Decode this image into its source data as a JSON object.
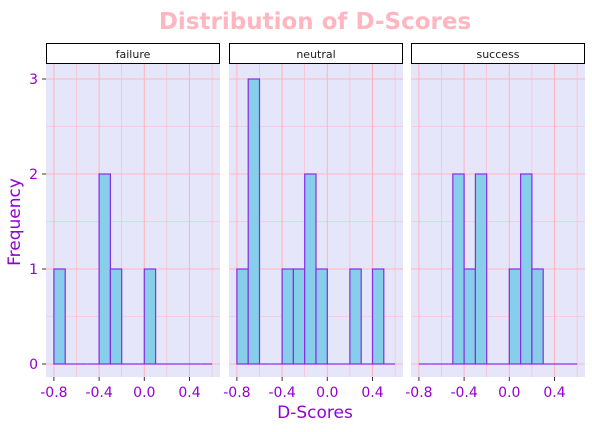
{
  "chart_data": {
    "type": "bar",
    "title": "Distribution of D-Scores",
    "xlabel": "D-Scores",
    "ylabel": "Frequency",
    "xlim": [
      -0.8,
      0.6
    ],
    "ylim": [
      0,
      3
    ],
    "x_ticks": [
      "-0.8",
      "-0.4",
      "0.0",
      "0.4"
    ],
    "y_ticks": [
      "0",
      "1",
      "2",
      "3"
    ],
    "bin_width": 0.1,
    "grid": true,
    "colors": {
      "title": "#ffb6c1",
      "axis_text": "#9400d3",
      "panel_bg": "#e6e6fa",
      "grid": "#ffb6c1",
      "bar_fill": "#87ceeb",
      "bar_stroke": "#8a2be2",
      "strip_bg": "#ffffff",
      "strip_border": "#000000"
    },
    "panels": [
      {
        "name": "failure",
        "bin_centers": [
          -0.75,
          -0.65,
          -0.55,
          -0.45,
          -0.35,
          -0.25,
          -0.15,
          -0.05,
          0.05,
          0.15,
          0.25,
          0.35,
          0.45,
          0.55
        ],
        "counts": [
          1,
          0,
          0,
          0,
          2,
          1,
          0,
          0,
          1,
          0,
          0,
          0,
          0,
          0
        ]
      },
      {
        "name": "neutral",
        "bin_centers": [
          -0.75,
          -0.65,
          -0.55,
          -0.45,
          -0.35,
          -0.25,
          -0.15,
          -0.05,
          0.05,
          0.15,
          0.25,
          0.35,
          0.45,
          0.55
        ],
        "counts": [
          1,
          3,
          0,
          0,
          1,
          1,
          2,
          1,
          0,
          0,
          1,
          0,
          1,
          0
        ]
      },
      {
        "name": "success",
        "bin_centers": [
          -0.75,
          -0.65,
          -0.55,
          -0.45,
          -0.35,
          -0.25,
          -0.15,
          -0.05,
          0.05,
          0.15,
          0.25,
          0.35,
          0.45,
          0.55
        ],
        "counts": [
          0,
          0,
          0,
          2,
          1,
          2,
          0,
          0,
          1,
          2,
          1,
          0,
          0,
          0
        ]
      }
    ]
  }
}
